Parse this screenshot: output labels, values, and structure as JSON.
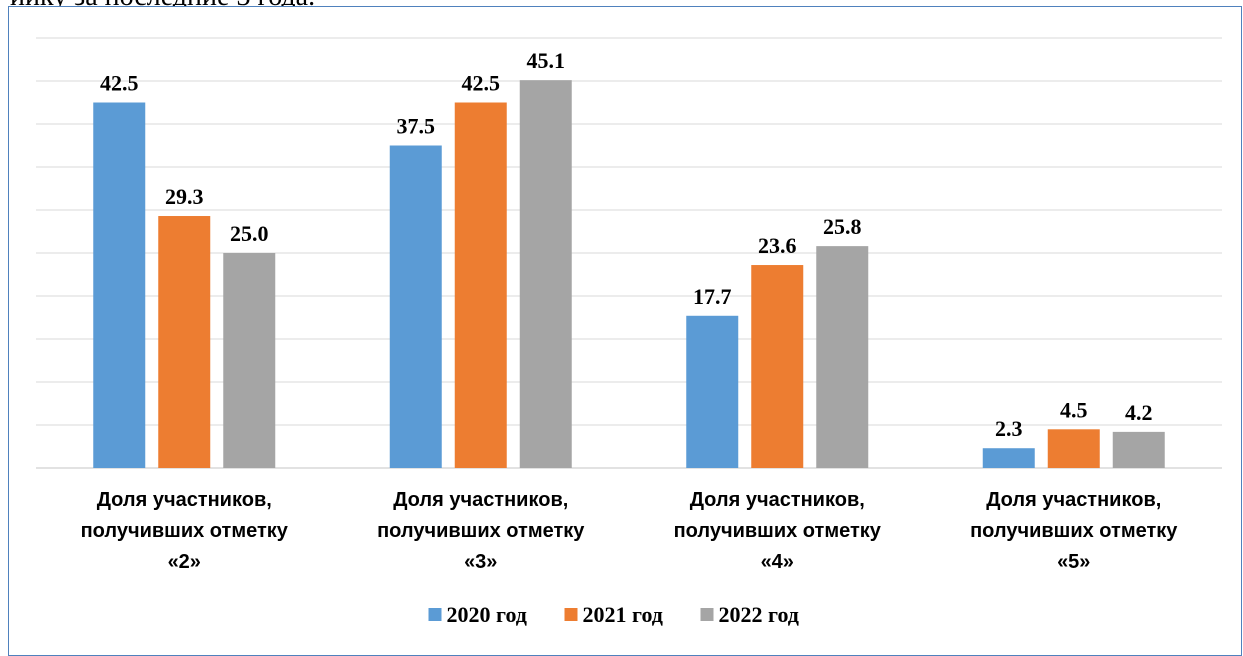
{
  "header": {
    "fragment_text": "ийку за последние 3 года."
  },
  "chart_data": {
    "type": "bar",
    "categories": [
      [
        "Доля участников,",
        "получивших отметку",
        "«2»"
      ],
      [
        "Доля участников,",
        "получивших отметку",
        "«3»"
      ],
      [
        "Доля участников,",
        "получивших отметку",
        "«4»"
      ],
      [
        "Доля участников,",
        "получивших отметку",
        "«5»"
      ]
    ],
    "series": [
      {
        "name": "2020 год",
        "color": "#5b9bd5",
        "values": [
          42.5,
          37.5,
          17.7,
          2.3
        ]
      },
      {
        "name": "2021 год",
        "color": "#ed7d31",
        "values": [
          29.3,
          42.5,
          23.6,
          4.5
        ]
      },
      {
        "name": "2022 год",
        "color": "#a5a5a5",
        "values": [
          25.0,
          45.1,
          25.8,
          4.2
        ]
      }
    ],
    "value_labels": [
      [
        "42.5",
        "29.3",
        "25.0"
      ],
      [
        "37.5",
        "42.5",
        "45.1"
      ],
      [
        "17.7",
        "23.6",
        "25.8"
      ],
      [
        "2.3",
        "4.5",
        "4.2"
      ]
    ],
    "ylim": [
      0,
      50
    ],
    "grid": true,
    "legend_position": "bottom"
  }
}
